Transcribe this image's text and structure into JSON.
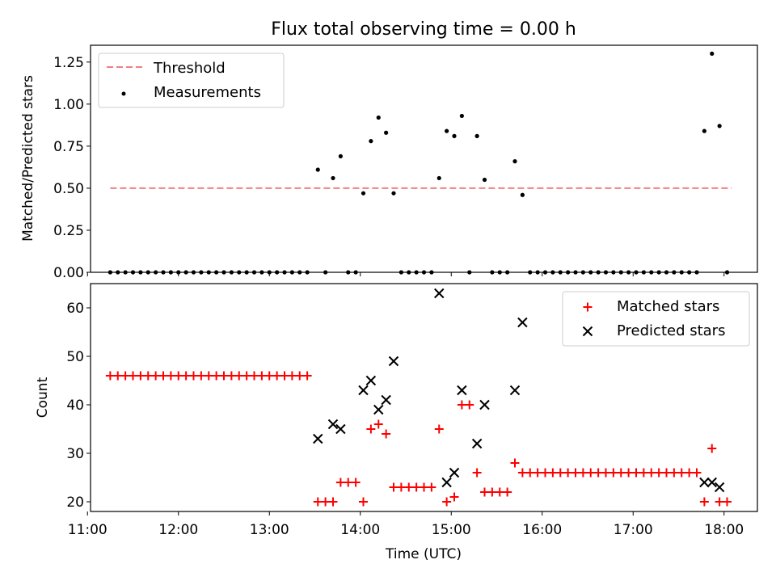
{
  "title": "Flux total observing time = 0.00 h",
  "colors": {
    "threshold": "#f08080",
    "matched": "#ff0000",
    "predicted": "#000000",
    "measurement": "#000000"
  },
  "chart_data": [
    {
      "type": "scatter",
      "ylabel": "Matched/Predicted stars",
      "xlim": [
        "11:02",
        "18:22"
      ],
      "ylim": [
        0,
        1.35
      ],
      "yticks": [
        "0.00",
        "0.25",
        "0.50",
        "0.75",
        "1.00",
        "1.25"
      ],
      "legend": {
        "position": "top-left",
        "entries": [
          "Threshold",
          "Measurements"
        ]
      },
      "threshold": {
        "name": "Threshold",
        "value": 0.5,
        "x_range": [
          "11:15",
          "18:05"
        ]
      },
      "series": [
        {
          "name": "Measurements",
          "points": [
            [
              "11:15",
              0
            ],
            [
              "11:20",
              0
            ],
            [
              "11:25",
              0
            ],
            [
              "11:30",
              0
            ],
            [
              "11:35",
              0
            ],
            [
              "11:40",
              0
            ],
            [
              "11:45",
              0
            ],
            [
              "11:50",
              0
            ],
            [
              "11:55",
              0
            ],
            [
              "12:00",
              0
            ],
            [
              "12:05",
              0
            ],
            [
              "12:10",
              0
            ],
            [
              "12:15",
              0
            ],
            [
              "12:20",
              0
            ],
            [
              "12:25",
              0
            ],
            [
              "12:30",
              0
            ],
            [
              "12:35",
              0
            ],
            [
              "12:40",
              0
            ],
            [
              "12:45",
              0
            ],
            [
              "12:50",
              0
            ],
            [
              "12:55",
              0
            ],
            [
              "13:00",
              0
            ],
            [
              "13:05",
              0
            ],
            [
              "13:10",
              0
            ],
            [
              "13:15",
              0
            ],
            [
              "13:20",
              0
            ],
            [
              "13:25",
              0
            ],
            [
              "13:32",
              0.61
            ],
            [
              "13:37",
              0
            ],
            [
              "13:42",
              0.56
            ],
            [
              "13:47",
              0.69
            ],
            [
              "13:52",
              0
            ],
            [
              "13:57",
              0
            ],
            [
              "14:02",
              0.47
            ],
            [
              "14:07",
              0.78
            ],
            [
              "14:12",
              0.92
            ],
            [
              "14:17",
              0.83
            ],
            [
              "14:22",
              0.47
            ],
            [
              "14:27",
              0
            ],
            [
              "14:32",
              0
            ],
            [
              "14:37",
              0
            ],
            [
              "14:42",
              0
            ],
            [
              "14:47",
              0
            ],
            [
              "14:52",
              0.56
            ],
            [
              "14:57",
              0.84
            ],
            [
              "15:02",
              0.81
            ],
            [
              "15:07",
              0.93
            ],
            [
              "15:12",
              0
            ],
            [
              "15:17",
              0.81
            ],
            [
              "15:22",
              0.55
            ],
            [
              "15:27",
              0
            ],
            [
              "15:32",
              0
            ],
            [
              "15:37",
              0
            ],
            [
              "15:42",
              0.66
            ],
            [
              "15:47",
              0.46
            ],
            [
              "15:52",
              0
            ],
            [
              "15:57",
              0
            ],
            [
              "16:02",
              0
            ],
            [
              "16:07",
              0
            ],
            [
              "16:12",
              0
            ],
            [
              "16:17",
              0
            ],
            [
              "16:22",
              0
            ],
            [
              "16:27",
              0
            ],
            [
              "16:32",
              0
            ],
            [
              "16:37",
              0
            ],
            [
              "16:42",
              0
            ],
            [
              "16:47",
              0
            ],
            [
              "16:52",
              0
            ],
            [
              "16:57",
              0
            ],
            [
              "17:02",
              0
            ],
            [
              "17:07",
              0
            ],
            [
              "17:12",
              0
            ],
            [
              "17:17",
              0
            ],
            [
              "17:22",
              0
            ],
            [
              "17:27",
              0
            ],
            [
              "17:32",
              0
            ],
            [
              "17:37",
              0
            ],
            [
              "17:42",
              0
            ],
            [
              "17:47",
              0.84
            ],
            [
              "17:52",
              1.3
            ],
            [
              "17:57",
              0.87
            ],
            [
              "18:02",
              0
            ]
          ]
        }
      ]
    },
    {
      "type": "scatter",
      "xlabel": "Time (UTC)",
      "ylabel": "Count",
      "xlim": [
        "11:02",
        "18:22"
      ],
      "ylim": [
        18,
        65
      ],
      "xticks": [
        "11:00",
        "12:00",
        "13:00",
        "14:00",
        "15:00",
        "16:00",
        "17:00",
        "18:00"
      ],
      "yticks": [
        "20",
        "30",
        "40",
        "50",
        "60"
      ],
      "legend": {
        "position": "top-right",
        "entries": [
          "Matched stars",
          "Predicted stars"
        ]
      },
      "series": [
        {
          "name": "Matched stars",
          "points": [
            [
              "11:15",
              46
            ],
            [
              "11:20",
              46
            ],
            [
              "11:25",
              46
            ],
            [
              "11:30",
              46
            ],
            [
              "11:35",
              46
            ],
            [
              "11:40",
              46
            ],
            [
              "11:45",
              46
            ],
            [
              "11:50",
              46
            ],
            [
              "11:55",
              46
            ],
            [
              "12:00",
              46
            ],
            [
              "12:05",
              46
            ],
            [
              "12:10",
              46
            ],
            [
              "12:15",
              46
            ],
            [
              "12:20",
              46
            ],
            [
              "12:25",
              46
            ],
            [
              "12:30",
              46
            ],
            [
              "12:35",
              46
            ],
            [
              "12:40",
              46
            ],
            [
              "12:45",
              46
            ],
            [
              "12:50",
              46
            ],
            [
              "12:55",
              46
            ],
            [
              "13:00",
              46
            ],
            [
              "13:05",
              46
            ],
            [
              "13:10",
              46
            ],
            [
              "13:15",
              46
            ],
            [
              "13:20",
              46
            ],
            [
              "13:25",
              46
            ],
            [
              "13:32",
              20
            ],
            [
              "13:37",
              20
            ],
            [
              "13:42",
              20
            ],
            [
              "13:47",
              24
            ],
            [
              "13:52",
              24
            ],
            [
              "13:57",
              24
            ],
            [
              "14:02",
              20
            ],
            [
              "14:07",
              35
            ],
            [
              "14:12",
              36
            ],
            [
              "14:17",
              34
            ],
            [
              "14:22",
              23
            ],
            [
              "14:27",
              23
            ],
            [
              "14:32",
              23
            ],
            [
              "14:37",
              23
            ],
            [
              "14:42",
              23
            ],
            [
              "14:47",
              23
            ],
            [
              "14:52",
              35
            ],
            [
              "14:57",
              20
            ],
            [
              "15:02",
              21
            ],
            [
              "15:07",
              40
            ],
            [
              "15:12",
              40
            ],
            [
              "15:17",
              26
            ],
            [
              "15:22",
              22
            ],
            [
              "15:27",
              22
            ],
            [
              "15:32",
              22
            ],
            [
              "15:37",
              22
            ],
            [
              "15:42",
              28
            ],
            [
              "15:47",
              26
            ],
            [
              "15:52",
              26
            ],
            [
              "15:57",
              26
            ],
            [
              "16:02",
              26
            ],
            [
              "16:07",
              26
            ],
            [
              "16:12",
              26
            ],
            [
              "16:17",
              26
            ],
            [
              "16:22",
              26
            ],
            [
              "16:27",
              26
            ],
            [
              "16:32",
              26
            ],
            [
              "16:37",
              26
            ],
            [
              "16:42",
              26
            ],
            [
              "16:47",
              26
            ],
            [
              "16:52",
              26
            ],
            [
              "16:57",
              26
            ],
            [
              "17:02",
              26
            ],
            [
              "17:07",
              26
            ],
            [
              "17:12",
              26
            ],
            [
              "17:17",
              26
            ],
            [
              "17:22",
              26
            ],
            [
              "17:27",
              26
            ],
            [
              "17:32",
              26
            ],
            [
              "17:37",
              26
            ],
            [
              "17:42",
              26
            ],
            [
              "17:47",
              20
            ],
            [
              "17:52",
              31
            ],
            [
              "17:57",
              20
            ],
            [
              "18:02",
              20
            ]
          ]
        },
        {
          "name": "Predicted stars",
          "points": [
            [
              "13:32",
              33
            ],
            [
              "13:42",
              36
            ],
            [
              "13:47",
              35
            ],
            [
              "14:02",
              43
            ],
            [
              "14:07",
              45
            ],
            [
              "14:12",
              39
            ],
            [
              "14:17",
              41
            ],
            [
              "14:22",
              49
            ],
            [
              "14:52",
              63
            ],
            [
              "14:57",
              24
            ],
            [
              "15:02",
              26
            ],
            [
              "15:07",
              43
            ],
            [
              "15:17",
              32
            ],
            [
              "15:22",
              40
            ],
            [
              "15:42",
              43
            ],
            [
              "15:47",
              57
            ],
            [
              "17:47",
              24
            ],
            [
              "17:52",
              24
            ],
            [
              "17:57",
              23
            ]
          ]
        }
      ]
    }
  ]
}
